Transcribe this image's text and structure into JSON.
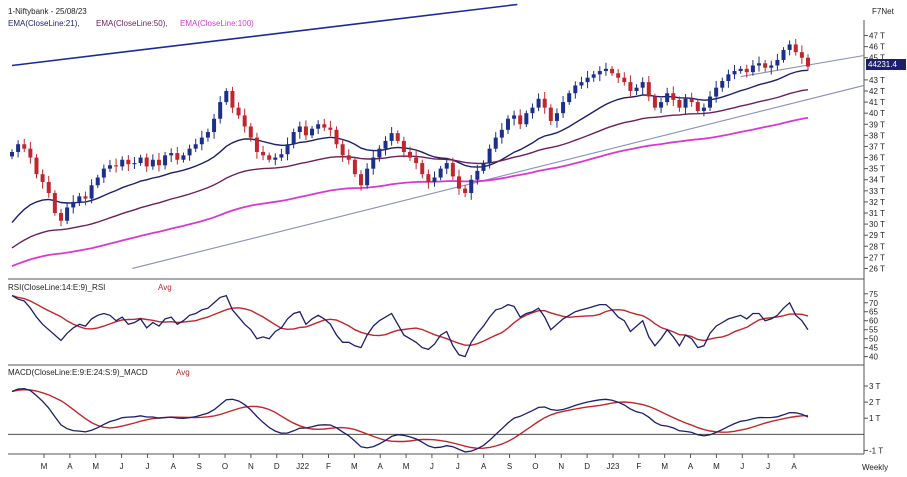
{
  "header": {
    "symbol_date": "1-Niftybank - 25/08/23",
    "brand": "F7Net",
    "x_axis_label": "Weekly"
  },
  "colors": {
    "ema21": "#1c1f6b",
    "ema50": "#6e1f5a",
    "ema100": "#d63ad3",
    "bull": "#1c2f8a",
    "bear": "#c0262c",
    "trend_upper": "#1b2a9a",
    "trend_lower": "#8a8fb8",
    "osc_line": "#1c1f6b",
    "osc_signal": "#c0262c"
  },
  "chart_data": [
    {
      "type": "candlestick",
      "panel": "price",
      "legend": [
        {
          "label": "EMA(CloseLine:21),",
          "color": "#1c1f6b"
        },
        {
          "label": "EMA(CloseLine:50),",
          "color": "#6e1f5a"
        },
        {
          "label": "EMA(CloseLine:100)",
          "color": "#d63ad3"
        }
      ],
      "y_unit": "T",
      "y_range": [
        25.5,
        47.5
      ],
      "y_ticks": [
        "47 T",
        "46 T",
        "45 T",
        "43 T",
        "42 T",
        "41 T",
        "40 T",
        "39 T",
        "38 T",
        "37 T",
        "36 T",
        "35 T",
        "34 T",
        "33 T",
        "32 T",
        "31 T",
        "30 T",
        "29 T",
        "28 T",
        "27 T",
        "26 T"
      ],
      "last_price_label": "44231.4",
      "x_labels": [
        "M",
        "A",
        "M",
        "J",
        "J",
        "A",
        "S",
        "O",
        "N",
        "D",
        "J22",
        "F",
        "M",
        "A",
        "M",
        "J",
        "J",
        "A",
        "S",
        "O",
        "N",
        "D",
        "J23",
        "F",
        "M",
        "A",
        "M",
        "J",
        "J",
        "A"
      ],
      "close": [
        36.5,
        37.2,
        36.8,
        36.0,
        34.5,
        33.8,
        32.8,
        31.0,
        30.3,
        31.5,
        32.0,
        32.5,
        32.3,
        33.5,
        34.2,
        35.0,
        35.3,
        35.2,
        35.8,
        35.4,
        35.5,
        36.0,
        35.2,
        35.8,
        35.3,
        36.2,
        36.4,
        35.8,
        36.2,
        36.8,
        37.2,
        37.8,
        38.3,
        39.5,
        41.0,
        42.0,
        40.5,
        39.8,
        38.8,
        37.8,
        36.5,
        36.2,
        35.8,
        36.0,
        36.3,
        37.2,
        38.3,
        38.8,
        38.0,
        38.6,
        39.0,
        38.7,
        38.5,
        37.2,
        36.2,
        35.8,
        34.5,
        33.5,
        35.0,
        36.0,
        36.8,
        37.5,
        38.2,
        37.5,
        36.5,
        36.0,
        35.5,
        34.5,
        33.8,
        34.2,
        35.0,
        35.5,
        34.3,
        33.2,
        32.8,
        34.0,
        34.8,
        35.5,
        36.8,
        37.8,
        38.5,
        39.5,
        39.8,
        39.0,
        40.0,
        40.5,
        41.3,
        40.5,
        39.3,
        40.0,
        41.0,
        41.8,
        42.5,
        42.8,
        43.2,
        43.5,
        43.8,
        44.0,
        43.6,
        43.2,
        42.8,
        42.0,
        42.3,
        42.8,
        41.5,
        40.5,
        41.0,
        41.8,
        41.2,
        40.5,
        41.3,
        41.0,
        40.2,
        40.5,
        41.5,
        42.3,
        42.9,
        43.5,
        43.8,
        44.0,
        43.7,
        44.3,
        44.5,
        44.1,
        44.3,
        44.8,
        45.7,
        46.2,
        45.5,
        45.0,
        44.2
      ],
      "series": [
        {
          "name": "EMA(CloseLine:21)",
          "period": 21
        },
        {
          "name": "EMA(CloseLine:50)",
          "period": 50
        },
        {
          "name": "EMA(CloseLine:100)",
          "period": 100
        }
      ]
    },
    {
      "type": "line",
      "panel": "rsi",
      "legend_label": "RSI(CloseLine:14:E:9)_RSI",
      "legend_avg": "Avg",
      "y_range": [
        37,
        76
      ],
      "y_ticks": [
        "75",
        "70",
        "65",
        "60",
        "55",
        "50",
        "45",
        "40"
      ],
      "rsi": [
        74,
        72,
        71,
        67,
        62,
        58,
        55,
        52,
        49,
        53,
        56,
        58,
        57,
        61,
        63,
        64,
        63,
        60,
        62,
        58,
        59,
        61,
        56,
        59,
        57,
        61,
        62,
        58,
        60,
        63,
        64,
        66,
        67,
        70,
        73,
        74,
        66,
        62,
        58,
        55,
        50,
        51,
        50,
        54,
        56,
        61,
        64,
        65,
        58,
        61,
        63,
        61,
        58,
        52,
        48,
        48,
        46,
        45,
        52,
        57,
        60,
        62,
        64,
        58,
        52,
        50,
        48,
        45,
        44,
        47,
        52,
        54,
        46,
        41,
        40,
        48,
        53,
        57,
        62,
        66,
        67,
        69,
        68,
        62,
        64,
        65,
        67,
        62,
        55,
        58,
        61,
        63,
        65,
        66,
        67,
        68,
        69,
        69,
        66,
        62,
        60,
        54,
        57,
        60,
        51,
        46,
        50,
        55,
        51,
        46,
        52,
        50,
        45,
        46,
        53,
        57,
        59,
        61,
        62,
        63,
        61,
        64,
        64,
        60,
        61,
        63,
        67,
        70,
        63,
        60,
        55
      ],
      "avg_period": 9
    },
    {
      "type": "line",
      "panel": "macd",
      "legend_label": "MACD(CloseLine:E:9:E:24:S:9)_MACD",
      "legend_avg": "Avg",
      "y_unit": "T",
      "y_range": [
        -1.1,
        3.5
      ],
      "y_ticks": [
        "3 T",
        "2 T",
        "1 T",
        "-1 T"
      ],
      "zero_line": 0,
      "avg_period": 9
    }
  ]
}
